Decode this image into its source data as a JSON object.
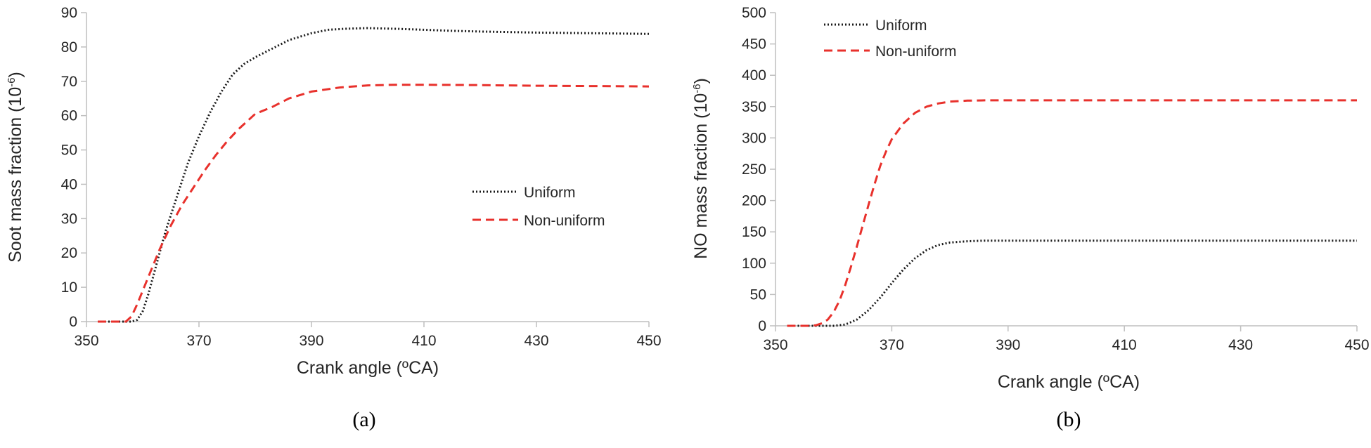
{
  "chart_data": [
    {
      "type": "line",
      "panel_label": "(a)",
      "xlabel": "Crank angle (ºCA)",
      "ylabel": "Soot mass fraction (10",
      "ylabel_exp": "-6",
      "ylabel_end": ")",
      "xlim": [
        350,
        450
      ],
      "ylim": [
        0,
        90
      ],
      "xticks": [
        "350",
        "370",
        "390",
        "410",
        "430",
        "450"
      ],
      "yticks": [
        "0",
        "10",
        "20",
        "30",
        "40",
        "50",
        "60",
        "70",
        "80",
        "90"
      ],
      "legend_position": "center-right",
      "series": [
        {
          "name": "Uniform",
          "style": "dotted",
          "color": "#1a1a1a",
          "x": [
            352,
            356,
            358,
            359,
            360,
            361,
            362,
            363,
            364,
            365,
            366,
            367,
            368,
            370,
            372,
            374,
            376,
            378,
            380,
            383,
            386,
            390,
            393,
            396,
            400,
            405,
            410,
            415,
            420,
            430,
            440,
            450
          ],
          "y": [
            0,
            0,
            0,
            0.5,
            3,
            8,
            14,
            20,
            26,
            31,
            36,
            41,
            46,
            54,
            61,
            67,
            72,
            75,
            77,
            79.5,
            82,
            84,
            85,
            85.3,
            85.5,
            85.3,
            85,
            84.7,
            84.5,
            84.2,
            84,
            83.8
          ]
        },
        {
          "name": "Non-uniform",
          "style": "dashed",
          "color": "#e8312c",
          "x": [
            352,
            355,
            357,
            358,
            359,
            360,
            361,
            362,
            363,
            364,
            365,
            367,
            369,
            371,
            373,
            375,
            377,
            380,
            383,
            386,
            390,
            395,
            400,
            405,
            410,
            420,
            430,
            440,
            450
          ],
          "y": [
            0,
            0,
            0,
            1.5,
            5,
            9,
            13,
            17,
            21,
            24.5,
            28,
            34,
            39,
            44,
            48.5,
            52.5,
            56,
            60.5,
            62.5,
            65,
            67,
            68.2,
            68.8,
            69,
            69,
            68.9,
            68.7,
            68.6,
            68.5
          ]
        }
      ]
    },
    {
      "type": "line",
      "panel_label": "(b)",
      "xlabel": "Crank angle (ºCA)",
      "ylabel": "NO mass fraction (10",
      "ylabel_exp": "-6",
      "ylabel_end": ")",
      "xlim": [
        350,
        450
      ],
      "ylim": [
        0,
        500
      ],
      "xticks": [
        "350",
        "370",
        "390",
        "410",
        "430",
        "450"
      ],
      "yticks": [
        "0",
        "50",
        "100",
        "150",
        "200",
        "250",
        "300",
        "350",
        "400",
        "450",
        "500"
      ],
      "legend_position": "top-left",
      "series": [
        {
          "name": "Uniform",
          "style": "dotted",
          "color": "#1a1a1a",
          "x": [
            352,
            358,
            360,
            362,
            364,
            366,
            368,
            370,
            372,
            374,
            376,
            378,
            380,
            383,
            386,
            390,
            400,
            420,
            450
          ],
          "y": [
            0,
            0,
            0,
            2,
            10,
            25,
            45,
            68,
            90,
            108,
            121,
            129,
            133,
            135,
            136,
            136,
            136,
            136,
            136
          ]
        },
        {
          "name": "Non-uniform",
          "style": "dashed",
          "color": "#e8312c",
          "x": [
            352,
            356,
            357,
            358,
            359,
            360,
            361,
            362,
            363,
            364,
            365,
            366,
            367,
            368,
            369,
            370,
            372,
            374,
            376,
            378,
            380,
            383,
            386,
            390,
            400,
            420,
            450
          ],
          "y": [
            0,
            0,
            1,
            4,
            10,
            22,
            40,
            65,
            95,
            127,
            160,
            193,
            225,
            255,
            278,
            298,
            323,
            340,
            350,
            355,
            358,
            359.5,
            360,
            360,
            360,
            360,
            360
          ]
        }
      ]
    }
  ]
}
